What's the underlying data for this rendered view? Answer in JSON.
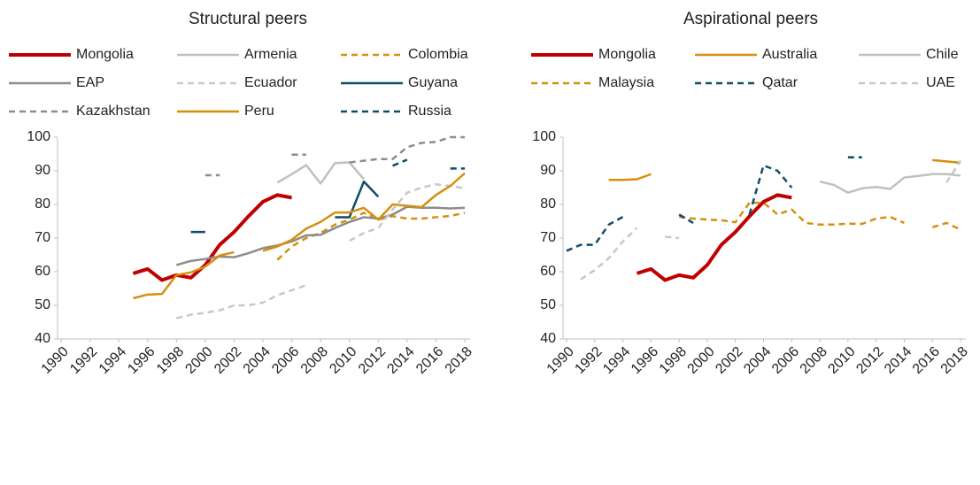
{
  "chart_data": [
    {
      "type": "line",
      "title": "Structural peers",
      "x": [
        1990,
        1991,
        1992,
        1993,
        1994,
        1995,
        1996,
        1997,
        1998,
        1999,
        2000,
        2001,
        2002,
        2003,
        2004,
        2005,
        2006,
        2007,
        2008,
        2009,
        2010,
        2011,
        2012,
        2013,
        2014,
        2015,
        2016,
        2017,
        2018
      ],
      "xlim": [
        1990,
        2018
      ],
      "xticks": [
        1990,
        1992,
        1994,
        1996,
        1998,
        2000,
        2002,
        2004,
        2006,
        2008,
        2010,
        2012,
        2014,
        2016,
        2018
      ],
      "ylim": [
        40,
        100
      ],
      "yticks": [
        40,
        50,
        60,
        70,
        80,
        90,
        100
      ],
      "series": [
        {
          "name": "Mongolia",
          "color": "#c00000",
          "linewidth": 4,
          "dashed": false,
          "values": [
            null,
            null,
            null,
            null,
            null,
            59.5,
            60.8,
            57.5,
            59,
            58.2,
            62,
            68,
            71.8,
            76.5,
            80.8,
            82.8,
            82,
            null,
            null,
            null,
            null,
            null,
            null,
            null,
            null,
            null,
            null,
            null,
            null
          ]
        },
        {
          "name": "Armenia",
          "color": "#c0c0c0",
          "linewidth": 2.5,
          "dashed": false,
          "values": [
            null,
            null,
            null,
            null,
            null,
            null,
            null,
            null,
            null,
            null,
            null,
            null,
            null,
            null,
            null,
            86.5,
            89,
            91.7,
            86.2,
            92.3,
            92.5,
            87.5,
            null,
            null,
            null,
            null,
            null,
            null,
            null
          ]
        },
        {
          "name": "Colombia",
          "color": "#d68f0f",
          "linewidth": 2.5,
          "dashed": true,
          "values": [
            null,
            null,
            null,
            null,
            null,
            null,
            null,
            null,
            null,
            null,
            null,
            null,
            null,
            null,
            null,
            63.5,
            67.5,
            70,
            71.5,
            74,
            75.5,
            77.5,
            75.5,
            76.5,
            75.8,
            75.8,
            76.2,
            76.6,
            77.5
          ]
        },
        {
          "name": "EAP",
          "color": "#8c8c8c",
          "linewidth": 2.5,
          "dashed": false,
          "values": [
            null,
            null,
            null,
            null,
            null,
            null,
            null,
            null,
            62,
            63.2,
            63.8,
            64.5,
            64.3,
            65.5,
            67,
            67.8,
            69,
            70.8,
            71,
            73,
            74.8,
            76.2,
            75.8,
            77,
            79.3,
            79,
            79,
            78.8,
            79
          ]
        },
        {
          "name": "Ecuador",
          "color": "#c8c8c8",
          "linewidth": 2.5,
          "dashed": true,
          "values": [
            null,
            null,
            null,
            null,
            null,
            null,
            null,
            null,
            46.2,
            47.2,
            47.8,
            48.5,
            50,
            50,
            50.8,
            53,
            54.5,
            56,
            null,
            null,
            69.2,
            71.5,
            73,
            78.5,
            83.5,
            85,
            86,
            85.5,
            84.8
          ]
        },
        {
          "name": "Guyana",
          "color": "#0f4c6a",
          "linewidth": 2.5,
          "dashed": false,
          "values": [
            null,
            null,
            null,
            null,
            null,
            null,
            null,
            null,
            null,
            71.8,
            71.8,
            null,
            null,
            null,
            null,
            null,
            null,
            null,
            null,
            76.2,
            76.2,
            86.8,
            82.3,
            null,
            null,
            null,
            null,
            null,
            null
          ]
        },
        {
          "name": "Kazakhstan",
          "color": "#8c8c8c",
          "linewidth": 2.5,
          "dashed": true,
          "values": [
            null,
            null,
            null,
            null,
            null,
            null,
            null,
            null,
            null,
            null,
            88.7,
            88.7,
            null,
            null,
            null,
            null,
            94.8,
            94.8,
            null,
            null,
            92.5,
            93,
            93.5,
            93.5,
            97,
            98.3,
            98.6,
            100,
            100
          ]
        },
        {
          "name": "Peru",
          "color": "#d68f0f",
          "linewidth": 2.5,
          "dashed": false,
          "values": [
            null,
            null,
            null,
            null,
            null,
            52.1,
            53.2,
            53.4,
            59,
            59.8,
            61.5,
            64.8,
            65.8,
            null,
            66.2,
            67.5,
            69.5,
            72.8,
            74.8,
            77.6,
            77.6,
            79,
            75.5,
            80,
            79.6,
            79.2,
            82.8,
            85.5,
            89.3
          ]
        },
        {
          "name": "Russia",
          "color": "#0f4c6a",
          "linewidth": 2.5,
          "dashed": true,
          "values": [
            null,
            null,
            null,
            null,
            null,
            null,
            null,
            null,
            null,
            null,
            null,
            null,
            null,
            null,
            null,
            null,
            null,
            null,
            null,
            null,
            null,
            null,
            null,
            91.5,
            93.3,
            null,
            null,
            90.7,
            90.7
          ]
        }
      ]
    },
    {
      "type": "line",
      "title": "Aspirational peers",
      "x": [
        1990,
        1991,
        1992,
        1993,
        1994,
        1995,
        1996,
        1997,
        1998,
        1999,
        2000,
        2001,
        2002,
        2003,
        2004,
        2005,
        2006,
        2007,
        2008,
        2009,
        2010,
        2011,
        2012,
        2013,
        2014,
        2015,
        2016,
        2017,
        2018
      ],
      "xlim": [
        1990,
        2018
      ],
      "xticks": [
        1990,
        1992,
        1994,
        1996,
        1998,
        2000,
        2002,
        2004,
        2006,
        2008,
        2010,
        2012,
        2014,
        2016,
        2018
      ],
      "ylim": [
        40,
        100
      ],
      "yticks": [
        40,
        50,
        60,
        70,
        80,
        90,
        100
      ],
      "series": [
        {
          "name": "Mongolia",
          "color": "#c00000",
          "linewidth": 4,
          "dashed": false,
          "values": [
            null,
            null,
            null,
            null,
            null,
            59.5,
            60.8,
            57.5,
            59,
            58.2,
            62,
            68,
            71.8,
            76.5,
            80.8,
            82.8,
            82,
            null,
            null,
            null,
            null,
            null,
            null,
            null,
            null,
            null,
            null,
            null,
            null
          ]
        },
        {
          "name": "Australia",
          "color": "#d68f0f",
          "linewidth": 2.5,
          "dashed": false,
          "values": [
            null,
            null,
            null,
            87.3,
            87.3,
            87.5,
            89,
            null,
            null,
            null,
            null,
            null,
            null,
            null,
            null,
            null,
            null,
            null,
            null,
            null,
            null,
            null,
            null,
            null,
            null,
            null,
            93.2,
            92.8,
            92.4
          ]
        },
        {
          "name": "Chile",
          "color": "#c0c0c0",
          "linewidth": 2.5,
          "dashed": false,
          "values": [
            null,
            null,
            null,
            null,
            null,
            null,
            null,
            null,
            null,
            null,
            null,
            null,
            null,
            null,
            null,
            null,
            null,
            null,
            86.8,
            85.8,
            83.5,
            84.8,
            85.2,
            84.6,
            88,
            88.5,
            89,
            89,
            88.6
          ]
        },
        {
          "name": "Malaysia",
          "color": "#d68f0f",
          "linewidth": 2.5,
          "dashed": true,
          "values": [
            null,
            null,
            null,
            null,
            null,
            null,
            null,
            null,
            76.3,
            75.8,
            75.5,
            75.3,
            74.7,
            80.5,
            80.5,
            77,
            78.5,
            74.5,
            74,
            74,
            74.3,
            74.2,
            75.8,
            76.3,
            74.5,
            null,
            73.2,
            74.5,
            72.5
          ]
        },
        {
          "name": "Qatar",
          "color": "#0f4c6a",
          "linewidth": 2.5,
          "dashed": true,
          "values": [
            66.2,
            68,
            68,
            74,
            76.3,
            null,
            null,
            null,
            77,
            74.5,
            null,
            null,
            null,
            77,
            91.6,
            90,
            85,
            null,
            null,
            null,
            94,
            94,
            null,
            null,
            null,
            null,
            null,
            null,
            null
          ]
        },
        {
          "name": "UAE",
          "color": "#c8c8c8",
          "linewidth": 2.5,
          "dashed": true,
          "values": [
            null,
            57.7,
            60.5,
            64,
            69,
            73,
            null,
            70.4,
            70,
            null,
            null,
            null,
            null,
            null,
            null,
            null,
            null,
            null,
            null,
            null,
            null,
            null,
            null,
            null,
            null,
            null,
            null,
            86.5,
            93
          ]
        }
      ]
    }
  ]
}
